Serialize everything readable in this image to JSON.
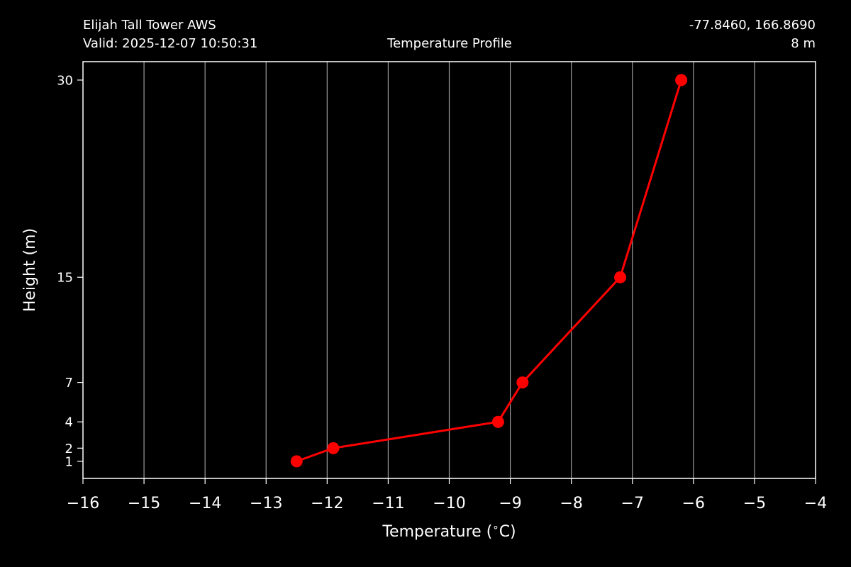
{
  "header": {
    "station": "Elijah Tall Tower AWS",
    "valid": "Valid: 2025-12-07 10:50:31",
    "title": "Temperature Profile",
    "coords": "-77.8460, 166.8690",
    "elevation": "8 m"
  },
  "colors": {
    "background": "#000000",
    "foreground": "#ffffff",
    "grid": "#9a9a9a",
    "series": "#ff0000"
  },
  "chart_data": {
    "type": "line",
    "title": "Temperature Profile",
    "xlabel": "Temperature ($^\\circ$C)",
    "ylabel": "Height (m)",
    "xlim": [
      -16,
      -4
    ],
    "ylim": [
      -0.3,
      31.4
    ],
    "xticks": [
      -16,
      -15,
      -14,
      -13,
      -12,
      -11,
      -10,
      -9,
      -8,
      -7,
      -6,
      -5,
      -4
    ],
    "xtick_labels": [
      "−16",
      "−15",
      "−14",
      "−13",
      "−12",
      "−11",
      "−10",
      "−9",
      "−8",
      "−7",
      "−6",
      "−5",
      "−4"
    ],
    "yticks": [
      1,
      2,
      4,
      7,
      15,
      30
    ],
    "ytick_labels": [
      "1",
      "2",
      "4",
      "7",
      "15",
      "30"
    ],
    "grid": "x-only",
    "series": [
      {
        "color": "#ff0000",
        "marker": "circle",
        "points": [
          {
            "x": -12.5,
            "y": 1
          },
          {
            "x": -11.9,
            "y": 2
          },
          {
            "x": -9.2,
            "y": 4
          },
          {
            "x": -8.8,
            "y": 7
          },
          {
            "x": -7.2,
            "y": 15
          },
          {
            "x": -6.2,
            "y": 30
          }
        ]
      }
    ]
  }
}
